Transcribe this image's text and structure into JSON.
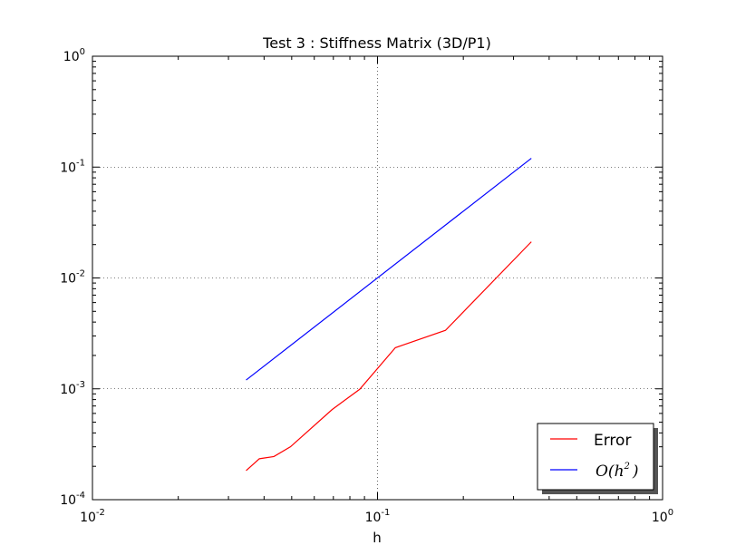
{
  "chart_data": {
    "type": "line",
    "title": "Test 3 : Stiffness Matrix (3D/P1)",
    "xlabel": "h",
    "ylabel": "",
    "xscale": "log",
    "yscale": "log",
    "xlim": [
      0.01,
      1
    ],
    "ylim": [
      0.0001,
      1
    ],
    "grid": true,
    "legend_position": "lower-right",
    "xticks": [
      {
        "value": 0.01,
        "base": "10",
        "exp": "-2"
      },
      {
        "value": 0.1,
        "base": "10",
        "exp": "-1"
      },
      {
        "value": 1,
        "base": "10",
        "exp": "0"
      }
    ],
    "yticks": [
      {
        "value": 0.0001,
        "base": "10",
        "exp": "-4"
      },
      {
        "value": 0.001,
        "base": "10",
        "exp": "-3"
      },
      {
        "value": 0.01,
        "base": "10",
        "exp": "-2"
      },
      {
        "value": 0.1,
        "base": "10",
        "exp": "-1"
      },
      {
        "value": 1,
        "base": "10",
        "exp": "0"
      }
    ],
    "series": [
      {
        "name": "Error",
        "color": "#ff0000",
        "x": [
          0.0346,
          0.0385,
          0.0433,
          0.0495,
          0.0693,
          0.0866,
          0.1155,
          0.1732,
          0.3464
        ],
        "y": [
          0.000183,
          0.000234,
          0.000245,
          0.0003,
          0.00065,
          0.00099,
          0.00235,
          0.00337,
          0.0212
        ]
      },
      {
        "name": "O(h^2)",
        "color": "#0000ff",
        "x": [
          0.0346,
          0.3464
        ],
        "y": [
          0.0012,
          0.12
        ]
      }
    ],
    "legend": {
      "error_label": "Error",
      "order_label_base": "O(h",
      "order_label_exp": "2",
      "order_label_close": ")"
    }
  }
}
